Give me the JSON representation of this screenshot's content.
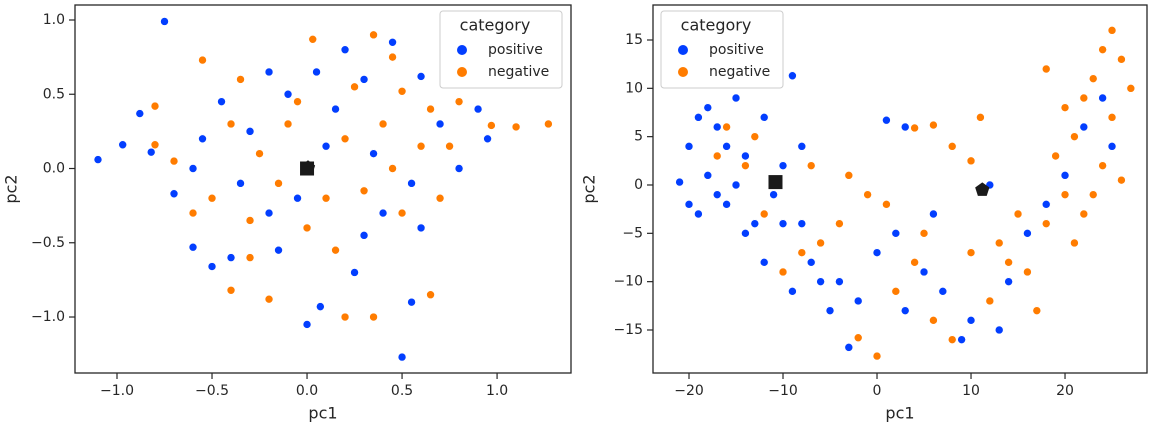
{
  "chart_data": [
    {
      "type": "scatter",
      "x_label": "pc1",
      "y_label": "pc2",
      "legend_title": "category",
      "legend_loc": "upper right",
      "xlim": [
        -1.221,
        1.389
      ],
      "ylim": [
        -1.377,
        1.101
      ],
      "xticks": [
        {
          "value": -1,
          "label": "−1.0"
        },
        {
          "value": -0.5,
          "label": "−0.5"
        },
        {
          "value": 0,
          "label": "0.0"
        },
        {
          "value": 0.5,
          "label": "0.5"
        },
        {
          "value": 1,
          "label": "1.0"
        }
      ],
      "yticks": [
        {
          "value": -1,
          "label": "−1.0"
        },
        {
          "value": -0.5,
          "label": "−0.5"
        },
        {
          "value": 0,
          "label": "0.0"
        },
        {
          "value": 0.5,
          "label": "0.5"
        },
        {
          "value": 1,
          "label": "1.0"
        }
      ],
      "series": [
        {
          "name": "positive",
          "color": "#023eff",
          "x": [
            -0.75,
            -1.1,
            -0.97,
            -0.88,
            -0.82,
            -0.7,
            -0.6,
            -0.5,
            -0.4,
            -0.3,
            -0.2,
            -0.1,
            0,
            0.07,
            0.2,
            0.3,
            0.45,
            0.5,
            0.55,
            0.6,
            0.7,
            0.9,
            0.95,
            0.4,
            0.1,
            -0.05,
            0.25,
            -0.55,
            -0.35,
            0.15,
            0.35,
            -0.2,
            0.05,
            0.55,
            -0.45,
            0.6,
            -0.15,
            0.3,
            0.8,
            -0.6
          ],
          "y": [
            0.99,
            0.06,
            0.16,
            0.37,
            0.11,
            -0.17,
            -0.53,
            -0.66,
            -0.6,
            0.25,
            -0.3,
            0.5,
            -1.05,
            -0.93,
            0.8,
            0.6,
            0.85,
            -1.27,
            -0.9,
            0.62,
            0.3,
            0.4,
            0.2,
            -0.3,
            0.15,
            -0.2,
            -0.7,
            0.2,
            -0.1,
            0.4,
            0.1,
            0.65,
            0.65,
            -0.1,
            0.45,
            -0.4,
            -0.55,
            -0.45,
            0.0,
            0.0
          ]
        },
        {
          "name": "negative",
          "color": "#ff7c00",
          "x": [
            1.27,
            1.1,
            0.97,
            0.8,
            0.75,
            0.65,
            0.35,
            0.2,
            -0.2,
            -0.4,
            -0.55,
            -0.35,
            -0.8,
            -0.8,
            -0.7,
            0.03,
            0.35,
            0.45,
            0.5,
            -0.1,
            -0.25,
            0.1,
            -0.3,
            0.2,
            0.4,
            -0.5,
            0.6,
            0.3,
            -0.05,
            0.15,
            -0.4,
            0.5,
            -0.6,
            0.0,
            0.7,
            -0.15,
            0.25,
            -0.3,
            0.45,
            0.65
          ],
          "y": [
            0.3,
            0.28,
            0.29,
            0.45,
            0.15,
            -0.85,
            -1.0,
            -1.0,
            -0.88,
            -0.82,
            0.73,
            0.6,
            0.42,
            0.16,
            0.05,
            0.87,
            0.9,
            0.75,
            0.52,
            0.3,
            0.1,
            -0.2,
            -0.35,
            0.2,
            0.3,
            -0.2,
            0.15,
            -0.15,
            0.45,
            -0.55,
            0.3,
            -0.3,
            -0.3,
            -0.4,
            -0.2,
            -0.1,
            0.55,
            -0.6,
            0.0,
            0.4
          ]
        }
      ],
      "centroids": {
        "color": "#1a1a1a",
        "markers": [
          "square",
          "pentagon"
        ],
        "x": [
          0,
          0.005
        ],
        "y": [
          0,
          0.005
        ]
      }
    },
    {
      "type": "scatter",
      "x_label": "pc1",
      "y_label": "pc2",
      "legend_title": "category",
      "legend_loc": "upper left",
      "xlim": [
        -23.83,
        28.72
      ],
      "ylim": [
        -19.45,
        18.62
      ],
      "xticks": [
        {
          "value": -20,
          "label": "−20"
        },
        {
          "value": -10,
          "label": "−10"
        },
        0,
        10,
        20
      ],
      "yticks": [
        {
          "value": -15,
          "label": "−15"
        },
        {
          "value": -10,
          "label": "−10"
        },
        {
          "value": -5,
          "label": "−5"
        },
        0,
        5,
        10,
        15
      ],
      "series": [
        {
          "name": "positive",
          "color": "#023eff",
          "x": [
            -21,
            -20,
            -19,
            -18,
            -17,
            -16,
            -15,
            -14,
            -13,
            -12,
            -11,
            -10,
            -9,
            -8,
            -7,
            -6,
            -5,
            -4,
            -3,
            -2,
            0,
            3,
            2,
            5,
            7,
            9,
            10,
            13,
            14,
            16,
            18,
            20,
            22,
            24,
            25,
            -20,
            -19,
            -17,
            -16,
            -18,
            -15,
            -14,
            -12,
            -9,
            -10,
            -8,
            3,
            1,
            6,
            12
          ],
          "y": [
            0.3,
            4,
            -3,
            8,
            6,
            -2,
            9,
            3,
            -4,
            7,
            -1,
            2,
            11.3,
            -4,
            -8,
            -10,
            -13,
            -10,
            -16.8,
            -12,
            -7,
            -13,
            -5,
            -9,
            -11,
            -16,
            -14,
            -15,
            -10,
            -5,
            -2,
            1,
            6,
            9,
            4,
            -2,
            7,
            -1,
            4,
            1,
            0,
            -5,
            -8,
            -11,
            -4,
            4,
            6,
            6.7,
            -3,
            0
          ]
        },
        {
          "name": "negative",
          "color": "#ff7c00",
          "x": [
            0,
            -2,
            4,
            6,
            -4,
            -6,
            -8,
            -10,
            -12,
            -14,
            -16,
            -17,
            -13,
            2,
            4,
            6,
            8,
            10,
            12,
            14,
            15,
            16,
            17,
            18,
            19,
            20,
            21,
            22,
            23,
            24,
            25,
            26,
            27,
            25,
            24,
            23,
            22,
            20,
            18,
            11,
            8,
            10,
            13,
            5,
            1,
            -1,
            -3,
            -7,
            26,
            21
          ],
          "y": [
            -17.7,
            -15.8,
            5.9,
            6.2,
            -4,
            -6,
            -7,
            -9,
            -3,
            2,
            6,
            3,
            5,
            -11,
            -8,
            -14,
            -16,
            -7,
            -12,
            -8,
            -3,
            -9,
            -13,
            -4,
            3,
            -1,
            5,
            -3,
            11,
            14,
            16,
            13,
            10,
            7,
            2,
            -1,
            9,
            8,
            12,
            7,
            4,
            2.5,
            -6,
            -5,
            -2,
            -1,
            1,
            2,
            0.5,
            -6
          ]
        }
      ],
      "centroids": {
        "color": "#1a1a1a",
        "markers": [
          "square",
          "pentagon"
        ],
        "x": [
          -10.8,
          11.2
        ],
        "y": [
          0.3,
          -0.5
        ]
      }
    }
  ]
}
